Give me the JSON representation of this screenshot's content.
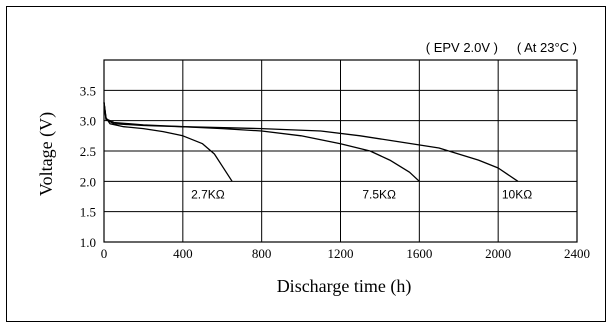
{
  "chart_data": {
    "type": "line",
    "annotation_epv": "( EPV 2.0V )",
    "annotation_temp": "( At 23°C )",
    "xlabel": "Discharge time (h)",
    "ylabel": "Voltage (V)",
    "xlim": [
      0,
      2400
    ],
    "ylim": [
      1.0,
      4.0
    ],
    "x_ticks": [
      0,
      400,
      800,
      1200,
      1600,
      2000,
      2400
    ],
    "y_ticks": [
      1.0,
      1.5,
      2.0,
      2.5,
      3.0,
      3.5
    ],
    "x_tick_labels": [
      "0",
      "400",
      "800",
      "1200",
      "1600",
      "2000",
      "2400"
    ],
    "y_tick_labels": [
      "1.0",
      "1.5",
      "2.0",
      "2.5",
      "3.0",
      "3.5"
    ],
    "grid": true,
    "series": [
      {
        "name": "2.7KΩ",
        "points": [
          [
            0,
            3.3
          ],
          [
            10,
            3.05
          ],
          [
            30,
            2.95
          ],
          [
            100,
            2.9
          ],
          [
            200,
            2.87
          ],
          [
            300,
            2.82
          ],
          [
            400,
            2.75
          ],
          [
            500,
            2.62
          ],
          [
            560,
            2.45
          ],
          [
            600,
            2.25
          ],
          [
            650,
            2.0
          ]
        ]
      },
      {
        "name": "7.5KΩ",
        "points": [
          [
            0,
            3.3
          ],
          [
            10,
            3.02
          ],
          [
            50,
            2.95
          ],
          [
            200,
            2.92
          ],
          [
            400,
            2.9
          ],
          [
            600,
            2.87
          ],
          [
            800,
            2.83
          ],
          [
            1000,
            2.75
          ],
          [
            1200,
            2.62
          ],
          [
            1350,
            2.5
          ],
          [
            1450,
            2.35
          ],
          [
            1550,
            2.15
          ],
          [
            1600,
            2.0
          ]
        ]
      },
      {
        "name": "10KΩ",
        "points": [
          [
            0,
            3.3
          ],
          [
            10,
            3.03
          ],
          [
            50,
            2.97
          ],
          [
            200,
            2.93
          ],
          [
            400,
            2.9
          ],
          [
            800,
            2.87
          ],
          [
            1100,
            2.83
          ],
          [
            1300,
            2.75
          ],
          [
            1500,
            2.65
          ],
          [
            1700,
            2.55
          ],
          [
            1900,
            2.35
          ],
          [
            2000,
            2.22
          ],
          [
            2100,
            2.0
          ]
        ]
      }
    ]
  }
}
